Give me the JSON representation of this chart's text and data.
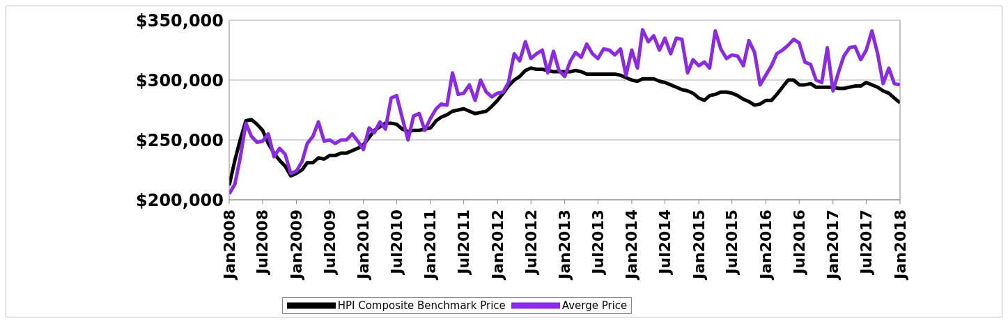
{
  "chart_data": {
    "type": "line",
    "x": [
      "2008-01",
      "2008-02",
      "2008-03",
      "2008-04",
      "2008-05",
      "2008-06",
      "2008-07",
      "2008-08",
      "2008-09",
      "2008-10",
      "2008-11",
      "2008-12",
      "2009-01",
      "2009-02",
      "2009-03",
      "2009-04",
      "2009-05",
      "2009-06",
      "2009-07",
      "2009-08",
      "2009-09",
      "2009-10",
      "2009-11",
      "2009-12",
      "2010-01",
      "2010-02",
      "2010-03",
      "2010-04",
      "2010-05",
      "2010-06",
      "2010-07",
      "2010-08",
      "2010-09",
      "2010-10",
      "2010-11",
      "2010-12",
      "2011-01",
      "2011-02",
      "2011-03",
      "2011-04",
      "2011-05",
      "2011-06",
      "2011-07",
      "2011-08",
      "2011-09",
      "2011-10",
      "2011-11",
      "2011-12",
      "2012-01",
      "2012-02",
      "2012-03",
      "2012-04",
      "2012-05",
      "2012-06",
      "2012-07",
      "2012-08",
      "2012-09",
      "2012-10",
      "2012-11",
      "2012-12",
      "2013-01",
      "2013-02",
      "2013-03",
      "2013-04",
      "2013-05",
      "2013-06",
      "2013-07",
      "2013-08",
      "2013-09",
      "2013-10",
      "2013-11",
      "2013-12",
      "2014-01",
      "2014-02",
      "2014-03",
      "2014-04",
      "2014-05",
      "2014-06",
      "2014-07",
      "2014-08",
      "2014-09",
      "2014-10",
      "2014-11",
      "2014-12",
      "2015-01",
      "2015-02",
      "2015-03",
      "2015-04",
      "2015-05",
      "2015-06",
      "2015-07",
      "2015-08",
      "2015-09",
      "2015-10",
      "2015-11",
      "2015-12",
      "2016-01",
      "2016-02",
      "2016-03",
      "2016-04",
      "2016-05",
      "2016-06",
      "2016-07",
      "2016-08",
      "2016-09",
      "2016-10",
      "2016-11",
      "2016-12",
      "2017-01",
      "2017-02",
      "2017-03",
      "2017-04",
      "2017-05",
      "2017-06",
      "2017-07",
      "2017-08",
      "2017-09",
      "2017-10",
      "2017-11",
      "2017-12",
      "2018-01"
    ],
    "series": [
      {
        "name": "HPI Composite Benchmark Price",
        "color": "#000000",
        "values": [
          212000,
          233000,
          250000,
          266000,
          267000,
          263000,
          258000,
          247000,
          239000,
          233000,
          228000,
          220000,
          222000,
          225000,
          231000,
          231000,
          235000,
          234000,
          237000,
          237000,
          239000,
          239000,
          241000,
          243000,
          246000,
          252000,
          258000,
          261000,
          264000,
          264000,
          263000,
          259000,
          257000,
          258000,
          258000,
          259000,
          260000,
          266000,
          269000,
          271000,
          274000,
          275000,
          276000,
          274000,
          272000,
          273000,
          274000,
          278000,
          283000,
          289000,
          295000,
          300000,
          303000,
          308000,
          310000,
          309000,
          309000,
          308000,
          307000,
          307000,
          307000,
          307000,
          308000,
          307000,
          305000,
          305000,
          305000,
          305000,
          305000,
          305000,
          304000,
          302000,
          300000,
          299000,
          301000,
          301000,
          301000,
          299000,
          298000,
          296000,
          294000,
          292000,
          291000,
          289000,
          285000,
          283000,
          287000,
          288000,
          290000,
          290000,
          289000,
          287000,
          284000,
          282000,
          279000,
          280000,
          283000,
          283000,
          288000,
          294000,
          300000,
          300000,
          296000,
          296000,
          297000,
          294000,
          294000,
          294000,
          294000,
          293000,
          293000,
          294000,
          295000,
          295000,
          298000,
          296000,
          294000,
          291000,
          289000,
          285000,
          281000
        ]
      },
      {
        "name": "Averge Price",
        "color": "#8a2be2",
        "values": [
          205000,
          213000,
          235000,
          264000,
          253000,
          248000,
          249000,
          255000,
          236000,
          243000,
          238000,
          222000,
          224000,
          232000,
          247000,
          253000,
          265000,
          249000,
          250000,
          247000,
          250000,
          250000,
          255000,
          249000,
          242000,
          260000,
          256000,
          265000,
          259000,
          285000,
          287000,
          268000,
          250000,
          270000,
          272000,
          258000,
          268000,
          276000,
          280000,
          279000,
          306000,
          288000,
          289000,
          296000,
          283000,
          300000,
          290000,
          286000,
          289000,
          290000,
          298000,
          322000,
          316000,
          332000,
          318000,
          322000,
          325000,
          306000,
          324000,
          308000,
          303000,
          316000,
          323000,
          319000,
          330000,
          322000,
          318000,
          326000,
          325000,
          321000,
          326000,
          304000,
          325000,
          310000,
          342000,
          332000,
          337000,
          325000,
          335000,
          322000,
          335000,
          334000,
          306000,
          317000,
          312000,
          315000,
          310000,
          341000,
          326000,
          318000,
          321000,
          320000,
          312000,
          333000,
          323000,
          296000,
          304000,
          312000,
          322000,
          325000,
          329000,
          334000,
          331000,
          315000,
          313000,
          300000,
          298000,
          327000,
          291000,
          307000,
          320000,
          327000,
          328000,
          317000,
          325000,
          341000,
          322000,
          297000,
          310000,
          297000,
          296000
        ]
      }
    ],
    "ylim": [
      200000,
      350000
    ],
    "yticks": [
      {
        "value": 200000,
        "label": "$200,000"
      },
      {
        "value": 250000,
        "label": "$250,000"
      },
      {
        "value": 300000,
        "label": "$300,000"
      },
      {
        "value": 350000,
        "label": "$350,000"
      }
    ],
    "xlim": [
      "2008-01",
      "2018-01"
    ],
    "xticks": [
      {
        "value": "2008-01",
        "label": "Jan2008"
      },
      {
        "value": "2008-07",
        "label": "Jul2008"
      },
      {
        "value": "2009-01",
        "label": "Jan2009"
      },
      {
        "value": "2009-07",
        "label": "Jul2009"
      },
      {
        "value": "2010-01",
        "label": "Jan2010"
      },
      {
        "value": "2010-07",
        "label": "Jul2010"
      },
      {
        "value": "2011-01",
        "label": "Jan2011"
      },
      {
        "value": "2011-07",
        "label": "Jul2011"
      },
      {
        "value": "2012-01",
        "label": "Jan2012"
      },
      {
        "value": "2012-07",
        "label": "Jul2012"
      },
      {
        "value": "2013-01",
        "label": "Jan2013"
      },
      {
        "value": "2013-07",
        "label": "Jul2013"
      },
      {
        "value": "2014-01",
        "label": "Jan2014"
      },
      {
        "value": "2014-07",
        "label": "Jul2014"
      },
      {
        "value": "2015-01",
        "label": "Jan2015"
      },
      {
        "value": "2015-07",
        "label": "Jul2015"
      },
      {
        "value": "2016-01",
        "label": "Jan2016"
      },
      {
        "value": "2016-07",
        "label": "Jul2016"
      },
      {
        "value": "2017-01",
        "label": "Jan2017"
      },
      {
        "value": "2017-07",
        "label": "Jul2017"
      },
      {
        "value": "2018-01",
        "label": "Jan2018"
      }
    ],
    "grid": "y",
    "legend": "bottom"
  }
}
